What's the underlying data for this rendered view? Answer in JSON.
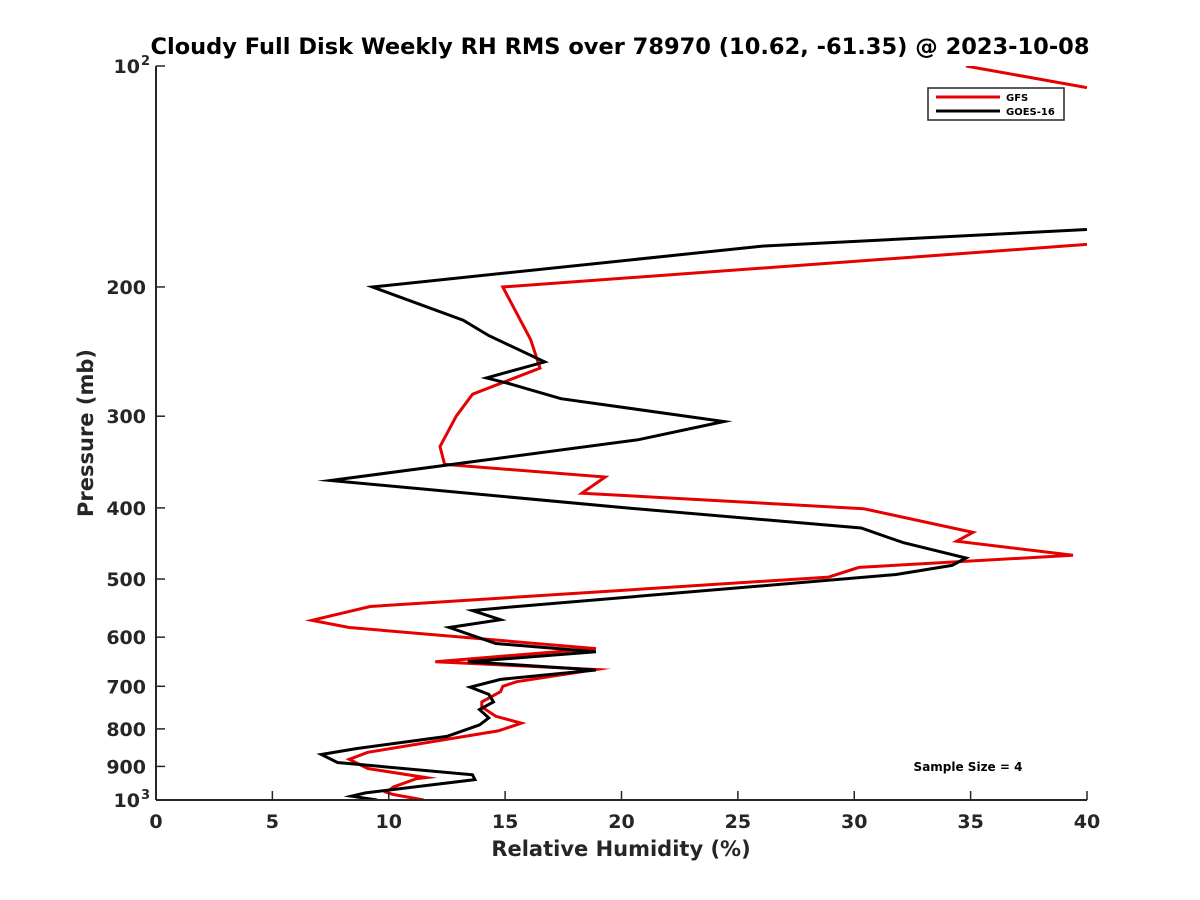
{
  "chart_data": {
    "type": "line",
    "title": "Cloudy Full Disk Weekly RH RMS over 78970 (10.62, -61.35) @ 2023-10-08",
    "xlabel": "Relative Humidity (%)",
    "ylabel": "Pressure (mb)",
    "xlim": [
      0,
      40
    ],
    "ylim": [
      100,
      1000
    ],
    "y_scale": "log",
    "y_reversed": true,
    "x_ticks": [
      "0",
      "5",
      "10",
      "15",
      "20",
      "25",
      "30",
      "35",
      "40"
    ],
    "y_ticks": [
      {
        "value": 100,
        "label": "10",
        "sup": "2"
      },
      {
        "value": 200,
        "label": "200",
        "sup": ""
      },
      {
        "value": 300,
        "label": "300",
        "sup": ""
      },
      {
        "value": 400,
        "label": "400",
        "sup": ""
      },
      {
        "value": 500,
        "label": "500",
        "sup": ""
      },
      {
        "value": 600,
        "label": "600",
        "sup": ""
      },
      {
        "value": 700,
        "label": "700",
        "sup": ""
      },
      {
        "value": 800,
        "label": "800",
        "sup": ""
      },
      {
        "value": 900,
        "label": "900",
        "sup": ""
      },
      {
        "value": 1000,
        "label": "10",
        "sup": "3"
      }
    ],
    "grid": false,
    "legend_position": "top-right",
    "annotation": "Sample Size = 4",
    "series": [
      {
        "name": "GFS",
        "color": "#e60000",
        "segments": [
          [
            [
              40.0,
              107
            ],
            [
              34.8,
              100
            ]
          ],
          [
            [
              40.0,
              175
            ],
            [
              14.9,
              200
            ],
            [
              16.1,
              236
            ],
            [
              16.5,
              258
            ],
            [
              13.6,
              280
            ],
            [
              12.9,
              300
            ],
            [
              12.2,
              330
            ],
            [
              12.4,
              349
            ],
            [
              19.3,
              363
            ],
            [
              18.3,
              382
            ],
            [
              30.4,
              401
            ],
            [
              35.1,
              432
            ],
            [
              34.4,
              444
            ],
            [
              39.4,
              464
            ],
            [
              30.2,
              482
            ],
            [
              28.9,
              497
            ],
            [
              9.2,
              545
            ],
            [
              6.7,
              569
            ],
            [
              8.3,
              582
            ],
            [
              18.9,
              622
            ],
            [
              12.0,
              648
            ],
            [
              18.9,
              664
            ],
            [
              15.5,
              690
            ],
            [
              14.9,
              700
            ],
            [
              14.8,
              712
            ],
            [
              14.0,
              735
            ],
            [
              14.0,
              747
            ],
            [
              14.6,
              769
            ],
            [
              15.7,
              786
            ],
            [
              14.7,
              805
            ],
            [
              9.1,
              861
            ],
            [
              8.3,
              880
            ],
            [
              9.1,
              906
            ],
            [
              11.6,
              932
            ],
            [
              11.2,
              935
            ],
            [
              10.2,
              960
            ],
            [
              9.9,
              976
            ],
            [
              10.2,
              983
            ],
            [
              11.5,
              1000
            ]
          ]
        ]
      },
      {
        "name": "GOES-16",
        "color": "#000000",
        "segments": [
          [
            [
              40.0,
              167
            ],
            [
              26.0,
              176
            ],
            [
              9.3,
              200
            ],
            [
              13.2,
              222
            ],
            [
              14.3,
              233
            ],
            [
              16.7,
              253
            ],
            [
              14.2,
              266
            ],
            [
              15.2,
              271
            ],
            [
              17.4,
              284
            ],
            [
              24.4,
              305
            ],
            [
              20.7,
              323
            ],
            [
              7.5,
              367
            ],
            [
              20.2,
              400
            ],
            [
              30.3,
              426
            ],
            [
              32.1,
              446
            ],
            [
              34.8,
              468
            ],
            [
              34.2,
              479
            ],
            [
              31.8,
              493
            ],
            [
              14.9,
              547
            ],
            [
              13.6,
              552
            ],
            [
              14.8,
              568
            ],
            [
              12.6,
              582
            ],
            [
              14.6,
              612
            ],
            [
              18.9,
              628
            ],
            [
              13.4,
              648
            ],
            [
              18.9,
              665
            ],
            [
              14.8,
              685
            ],
            [
              13.5,
              702
            ],
            [
              14.3,
              718
            ],
            [
              14.5,
              735
            ],
            [
              13.9,
              753
            ],
            [
              14.3,
              773
            ],
            [
              13.9,
              790
            ],
            [
              12.5,
              819
            ],
            [
              8.6,
              851
            ],
            [
              7.1,
              867
            ],
            [
              7.8,
              889
            ],
            [
              13.6,
              924
            ],
            [
              13.7,
              938
            ],
            [
              9.0,
              978
            ],
            [
              8.4,
              988
            ],
            [
              9.5,
              1000
            ]
          ]
        ]
      }
    ]
  }
}
